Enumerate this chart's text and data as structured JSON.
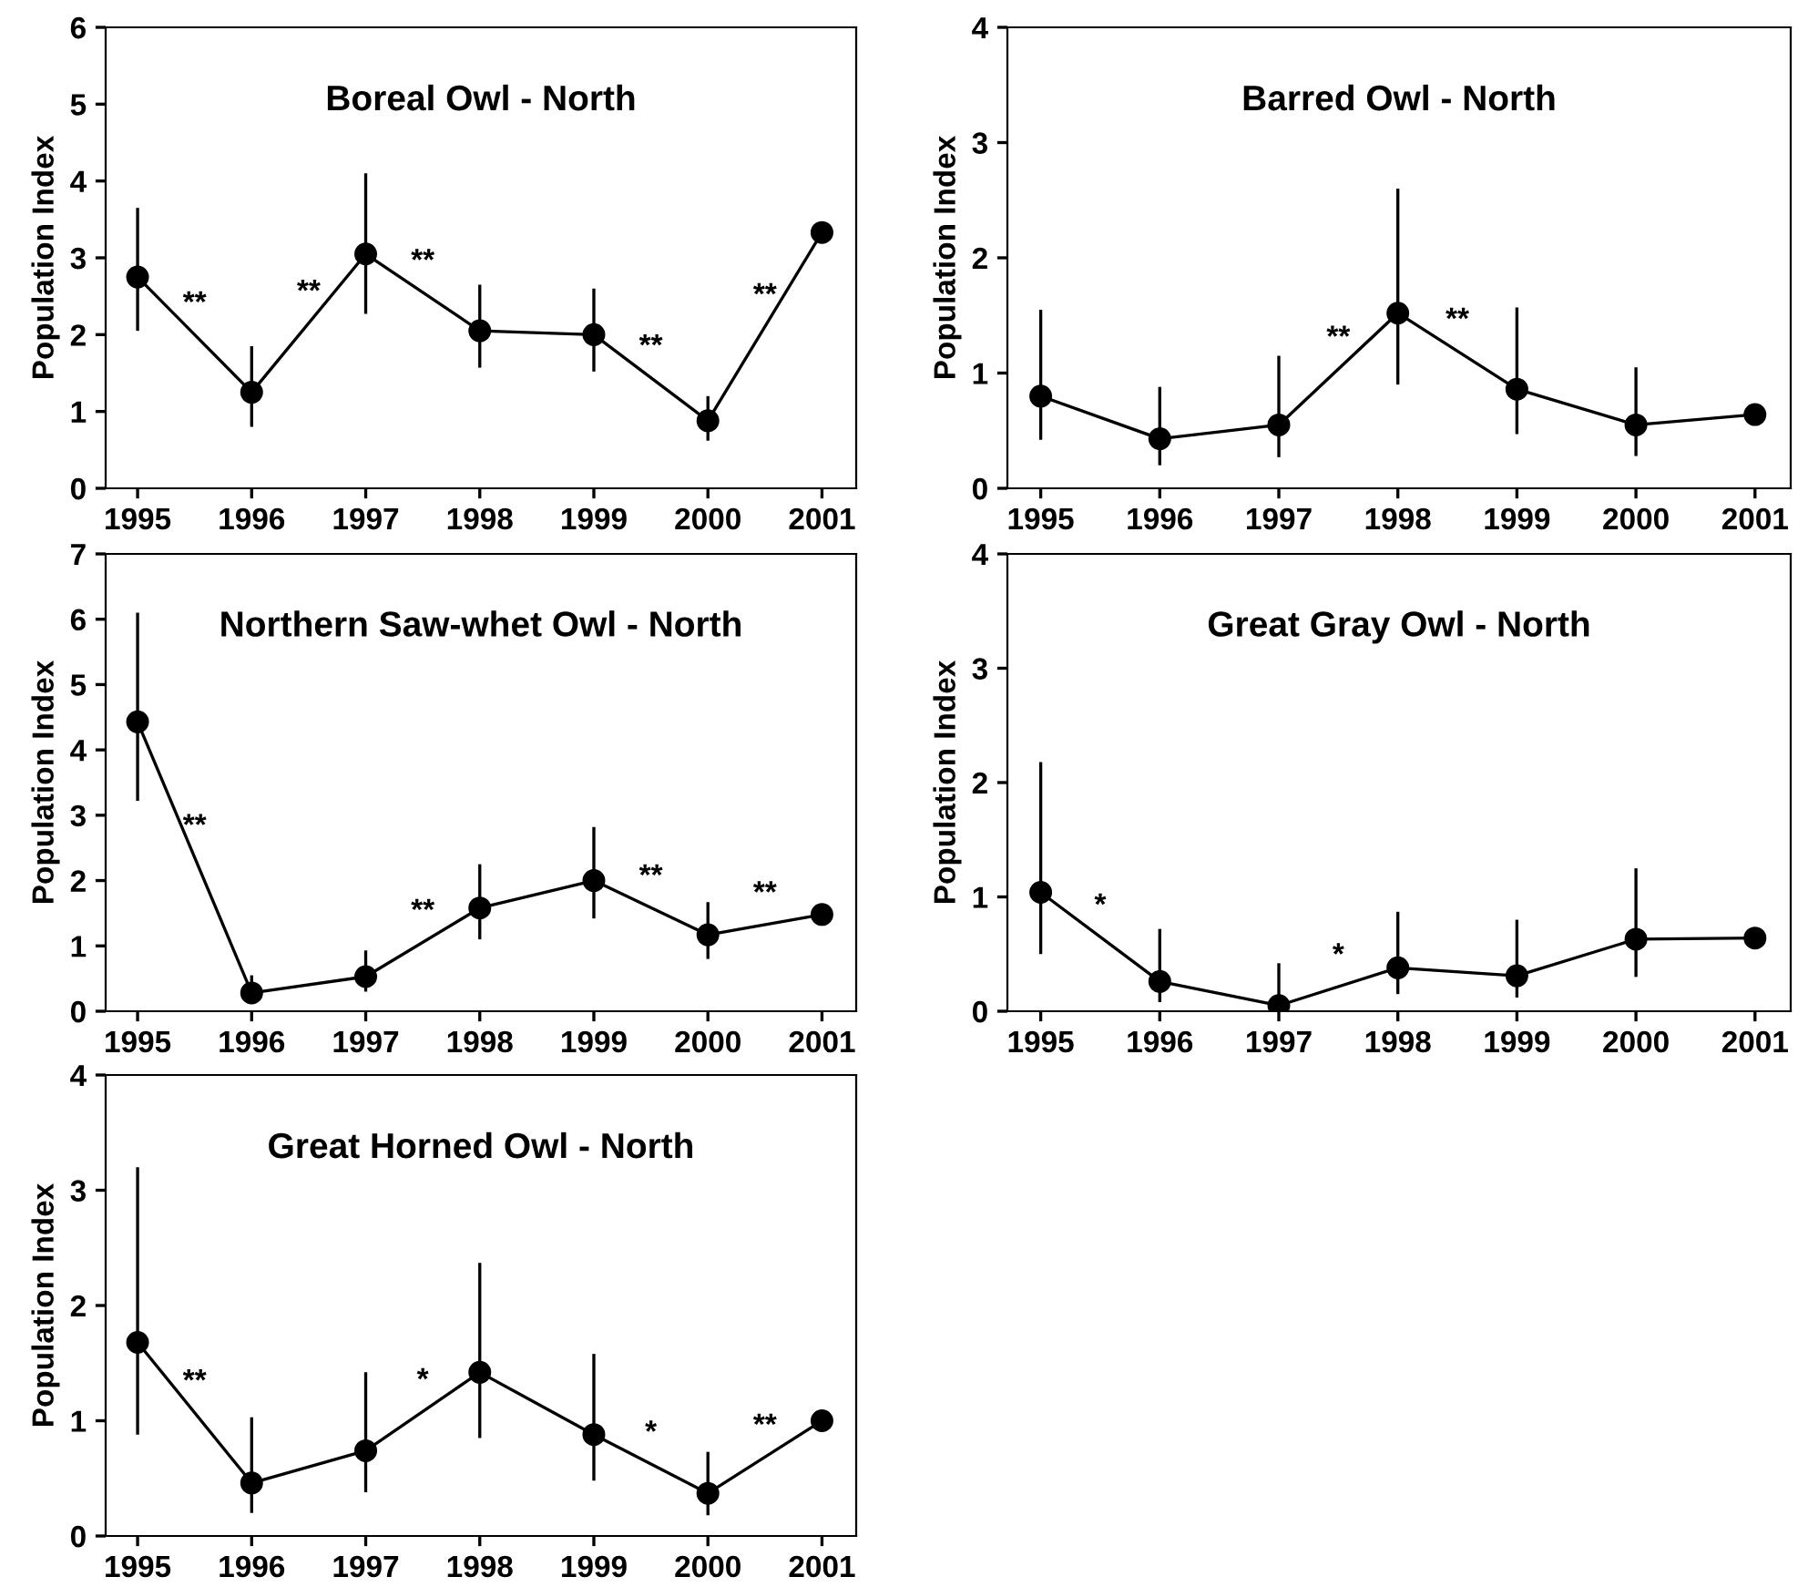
{
  "chart_data": [
    {
      "type": "line",
      "title": "Boreal Owl - North",
      "ylabel": "Population Index",
      "marker": "circle",
      "color": "#000000",
      "x": [
        1995,
        1996,
        1997,
        1998,
        1999,
        2000,
        2001
      ],
      "xlim": [
        1994.72,
        2001.3
      ],
      "xticks": [
        1995,
        1996,
        1997,
        1998,
        1999,
        2000,
        2001
      ],
      "ylim": [
        0,
        6
      ],
      "yticks": [
        0,
        1,
        2,
        3,
        4,
        5,
        6
      ],
      "values": [
        2.75,
        1.25,
        3.05,
        2.05,
        2.0,
        0.88,
        3.33
      ],
      "errors": [
        [
          2.05,
          3.65
        ],
        [
          0.8,
          1.85
        ],
        [
          2.27,
          4.1
        ],
        [
          1.57,
          2.65
        ],
        [
          1.52,
          2.6
        ],
        [
          0.62,
          1.2
        ],
        null
      ],
      "annotations": [
        "**",
        "**",
        "**",
        null,
        "**",
        "**"
      ]
    },
    {
      "type": "line",
      "title": "Barred Owl - North",
      "ylabel": "Population Index",
      "marker": "circle",
      "color": "#000000",
      "x": [
        1995,
        1996,
        1997,
        1998,
        1999,
        2000,
        2001
      ],
      "xlim": [
        1994.72,
        2001.3
      ],
      "xticks": [
        1995,
        1996,
        1997,
        1998,
        1999,
        2000,
        2001
      ],
      "ylim": [
        0,
        4
      ],
      "yticks": [
        0,
        1,
        2,
        3,
        4
      ],
      "values": [
        0.8,
        0.43,
        0.55,
        1.52,
        0.86,
        0.55,
        0.64
      ],
      "errors": [
        [
          0.42,
          1.55
        ],
        [
          0.2,
          0.88
        ],
        [
          0.27,
          1.15
        ],
        [
          0.9,
          2.6
        ],
        [
          0.47,
          1.57
        ],
        [
          0.28,
          1.05
        ],
        null
      ],
      "annotations": [
        null,
        null,
        "**",
        "**",
        null,
        null
      ]
    },
    {
      "type": "line",
      "title": "Northern Saw-whet Owl - North",
      "ylabel": "Population Index",
      "marker": "circle",
      "color": "#000000",
      "x": [
        1995,
        1996,
        1997,
        1998,
        1999,
        2000,
        2001
      ],
      "xlim": [
        1994.72,
        2001.3
      ],
      "xticks": [
        1995,
        1996,
        1997,
        1998,
        1999,
        2000,
        2001
      ],
      "ylim": [
        0,
        7
      ],
      "yticks": [
        0,
        1,
        2,
        3,
        4,
        5,
        6,
        7
      ],
      "values": [
        4.43,
        0.28,
        0.53,
        1.58,
        2.0,
        1.17,
        1.48
      ],
      "errors": [
        [
          3.22,
          6.1
        ],
        [
          0.12,
          0.55
        ],
        [
          0.3,
          0.93
        ],
        [
          1.1,
          2.25
        ],
        [
          1.42,
          2.82
        ],
        [
          0.8,
          1.67
        ],
        null
      ],
      "annotations": [
        "**",
        null,
        "**",
        null,
        "**",
        "**"
      ]
    },
    {
      "type": "line",
      "title": "Great Gray Owl - North",
      "ylabel": "Population Index",
      "marker": "circle",
      "color": "#000000",
      "x": [
        1995,
        1996,
        1997,
        1998,
        1999,
        2000,
        2001
      ],
      "xlim": [
        1994.72,
        2001.3
      ],
      "xticks": [
        1995,
        1996,
        1997,
        1998,
        1999,
        2000,
        2001
      ],
      "ylim": [
        0,
        4
      ],
      "yticks": [
        0,
        1,
        2,
        3,
        4
      ],
      "values": [
        1.04,
        0.26,
        0.05,
        0.38,
        0.31,
        0.63,
        0.64
      ],
      "errors": [
        [
          0.5,
          2.18
        ],
        [
          0.08,
          0.72
        ],
        [
          0,
          0.42
        ],
        [
          0.15,
          0.87
        ],
        [
          0.12,
          0.8
        ],
        [
          0.3,
          1.25
        ],
        null
      ],
      "annotations": [
        "*",
        null,
        "*",
        null,
        null,
        null
      ]
    },
    {
      "type": "line",
      "title": "Great Horned Owl - North",
      "ylabel": "Population Index",
      "marker": "circle",
      "color": "#000000",
      "x": [
        1995,
        1996,
        1997,
        1998,
        1999,
        2000,
        2001
      ],
      "xlim": [
        1994.72,
        2001.3
      ],
      "xticks": [
        1995,
        1996,
        1997,
        1998,
        1999,
        2000,
        2001
      ],
      "ylim": [
        0,
        4
      ],
      "yticks": [
        0,
        1,
        2,
        3,
        4
      ],
      "values": [
        1.68,
        0.46,
        0.74,
        1.42,
        0.88,
        0.37,
        1.0
      ],
      "errors": [
        [
          0.88,
          3.2
        ],
        [
          0.2,
          1.03
        ],
        [
          0.38,
          1.42
        ],
        [
          0.85,
          2.37
        ],
        [
          0.48,
          1.58
        ],
        [
          0.18,
          0.73
        ],
        null
      ],
      "annotations": [
        "**",
        null,
        "*",
        null,
        "*",
        "**"
      ]
    }
  ]
}
